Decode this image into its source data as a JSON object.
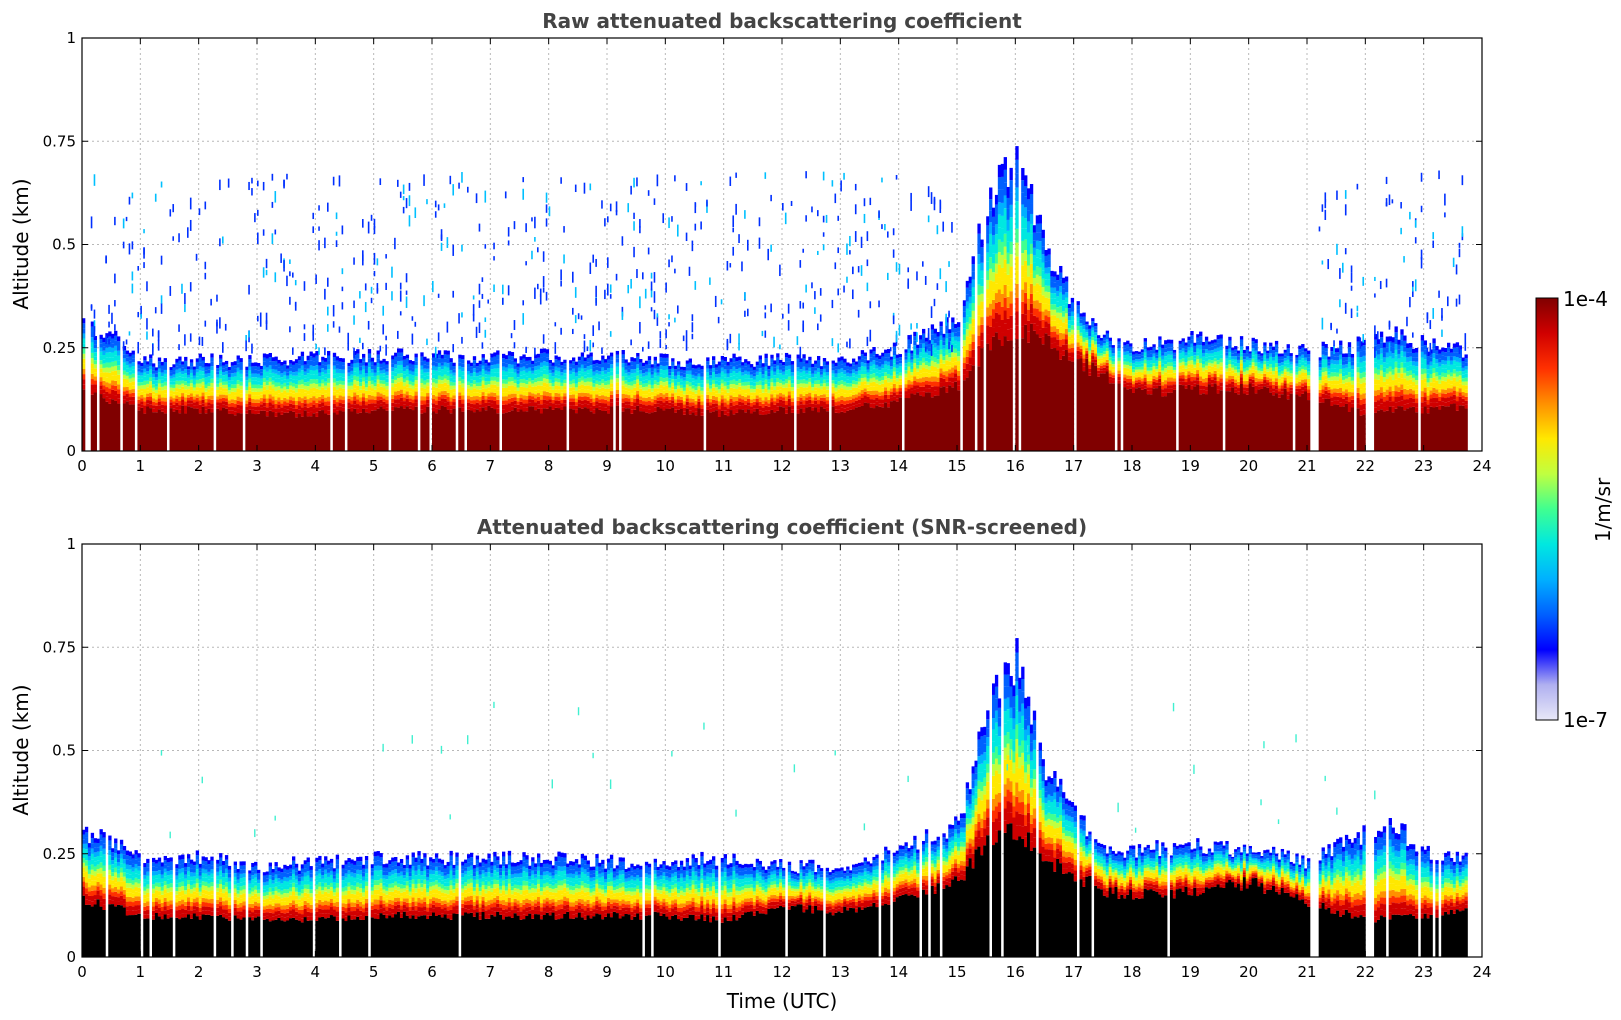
{
  "chart_data": [
    {
      "type": "heatmap",
      "title": "Raw attenuated backscattering coefficient",
      "xlabel": "",
      "ylabel": "Altitude (km)",
      "xlim": [
        0,
        24
      ],
      "ylim": [
        0,
        1
      ],
      "xticks": [
        0,
        1,
        2,
        3,
        4,
        5,
        6,
        7,
        8,
        9,
        10,
        11,
        12,
        13,
        14,
        15,
        16,
        17,
        18,
        19,
        20,
        21,
        22,
        23,
        24
      ],
      "xtick_labels": [
        "0",
        "1",
        "2",
        "3",
        "4",
        "5",
        "6",
        "7",
        "8",
        "9",
        "10",
        "11",
        "12",
        "13",
        "14",
        "15",
        "16",
        "17",
        "18",
        "19",
        "20",
        "21",
        "22",
        "23",
        "24"
      ],
      "yticks": [
        0,
        0.25,
        0.5,
        0.75,
        1
      ],
      "ytick_labels": [
        "0",
        "0.25",
        "0.5",
        "0.75",
        "1"
      ],
      "grid": true,
      "data_end_hour": 23.75,
      "data_gaps_hours": [
        [
          21.05,
          21.2
        ],
        [
          22.0,
          22.15
        ]
      ],
      "layer_profile": {
        "hours": [
          0,
          0.5,
          1,
          2,
          3,
          4,
          5,
          6,
          7,
          8,
          9,
          10,
          11,
          12,
          13,
          14,
          15,
          15.5,
          16,
          16.5,
          17,
          17.5,
          18,
          19,
          20,
          21,
          22,
          22.5,
          23,
          23.75
        ],
        "saturated_top_km": [
          0.14,
          0.12,
          0.1,
          0.1,
          0.09,
          0.09,
          0.1,
          0.1,
          0.1,
          0.1,
          0.1,
          0.1,
          0.09,
          0.1,
          0.1,
          0.12,
          0.16,
          0.25,
          0.3,
          0.26,
          0.22,
          0.18,
          0.14,
          0.15,
          0.15,
          0.13,
          0.09,
          0.1,
          0.1,
          0.11
        ],
        "signal_top_km": [
          0.3,
          0.28,
          0.22,
          0.22,
          0.22,
          0.23,
          0.23,
          0.23,
          0.23,
          0.23,
          0.23,
          0.22,
          0.22,
          0.22,
          0.22,
          0.25,
          0.32,
          0.6,
          0.72,
          0.5,
          0.35,
          0.28,
          0.25,
          0.27,
          0.26,
          0.24,
          0.26,
          0.28,
          0.26,
          0.24
        ]
      },
      "noise_region": {
        "altitude_km": [
          0.25,
          0.68
        ],
        "hours": [
          [
            0,
            15
          ],
          [
            21.2,
            23.75
          ]
        ]
      }
    },
    {
      "type": "heatmap",
      "title": "Attenuated backscattering coefficient (SNR-screened)",
      "xlabel": "Time (UTC)",
      "ylabel": "Altitude (km)",
      "xlim": [
        0,
        24
      ],
      "ylim": [
        0,
        1
      ],
      "xticks": [
        0,
        1,
        2,
        3,
        4,
        5,
        6,
        7,
        8,
        9,
        10,
        11,
        12,
        13,
        14,
        15,
        16,
        17,
        18,
        19,
        20,
        21,
        22,
        23,
        24
      ],
      "xtick_labels": [
        "0",
        "1",
        "2",
        "3",
        "4",
        "5",
        "6",
        "7",
        "8",
        "9",
        "10",
        "11",
        "12",
        "13",
        "14",
        "15",
        "16",
        "17",
        "18",
        "19",
        "20",
        "21",
        "22",
        "23",
        "24"
      ],
      "yticks": [
        0,
        0.25,
        0.5,
        0.75,
        1
      ],
      "ytick_labels": [
        "0",
        "0.25",
        "0.5",
        "0.75",
        "1"
      ],
      "grid": true,
      "data_end_hour": 23.75,
      "data_gaps_hours": [
        [
          21.05,
          21.2
        ],
        [
          22.0,
          22.15
        ]
      ],
      "low_snr_saturated_color": "#000000",
      "layer_profile": {
        "hours": [
          0,
          0.5,
          1,
          2,
          3,
          4,
          5,
          6,
          7,
          8,
          9,
          10,
          11,
          12,
          13,
          14,
          15,
          15.5,
          16,
          16.5,
          17,
          17.5,
          18,
          19,
          20,
          21,
          22,
          22.5,
          23,
          23.75
        ],
        "saturated_top_km": [
          0.14,
          0.12,
          0.1,
          0.1,
          0.09,
          0.09,
          0.1,
          0.1,
          0.1,
          0.1,
          0.1,
          0.1,
          0.09,
          0.12,
          0.11,
          0.14,
          0.18,
          0.28,
          0.3,
          0.24,
          0.2,
          0.16,
          0.15,
          0.16,
          0.18,
          0.13,
          0.09,
          0.1,
          0.1,
          0.11
        ],
        "signal_top_km": [
          0.3,
          0.28,
          0.23,
          0.24,
          0.22,
          0.23,
          0.24,
          0.24,
          0.24,
          0.24,
          0.23,
          0.23,
          0.24,
          0.22,
          0.22,
          0.26,
          0.32,
          0.6,
          0.72,
          0.45,
          0.35,
          0.26,
          0.26,
          0.27,
          0.26,
          0.23,
          0.3,
          0.32,
          0.25,
          0.24
        ]
      }
    }
  ],
  "colorbar": {
    "label": "1/m/sr",
    "max_label": "1e-4",
    "min_label": "1e-7",
    "scale": "log",
    "range": [
      1e-07,
      0.0001
    ],
    "colors": [
      "#e8e8f8",
      "#b0b0f0",
      "#0000ff",
      "#0060ff",
      "#00b0ff",
      "#00e8e0",
      "#40ff90",
      "#c0ff40",
      "#ffe800",
      "#ff9000",
      "#ff3000",
      "#d00000",
      "#800000"
    ]
  }
}
